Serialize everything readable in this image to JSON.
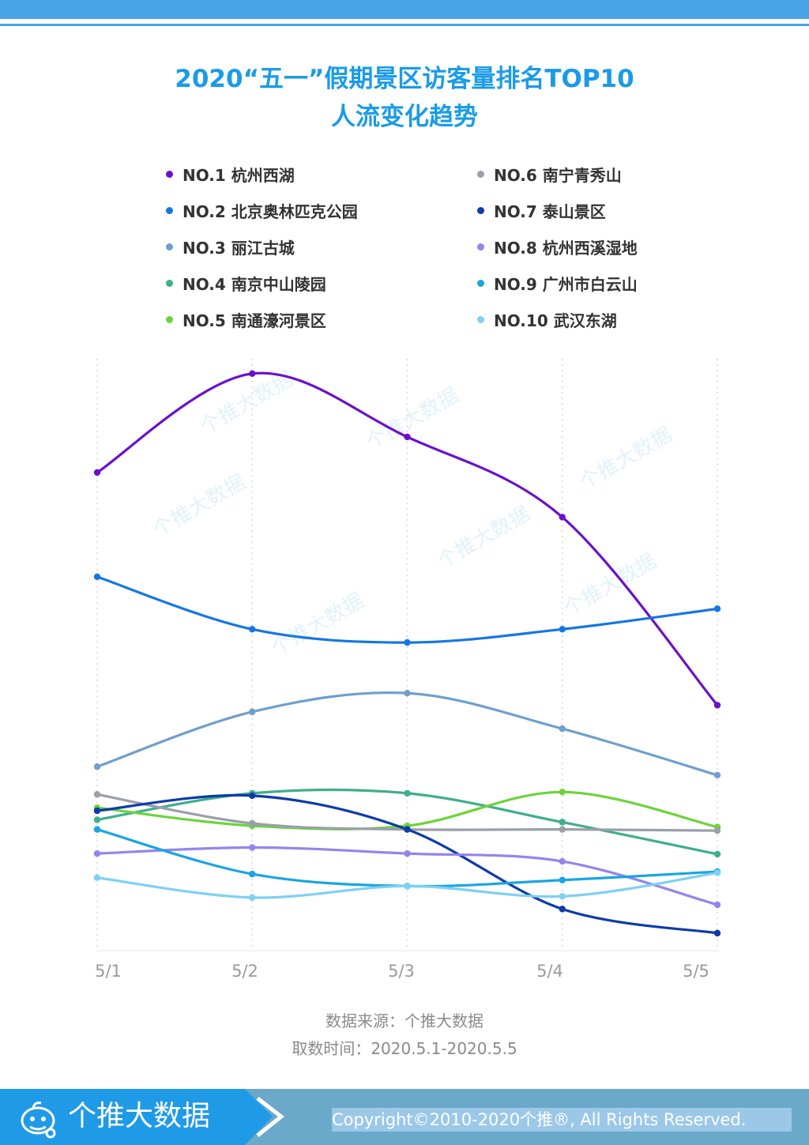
{
  "title": {
    "line1": "2020“五一”假期景区访客量排名TOP10",
    "line2": "人流变化趋势"
  },
  "watermark": "个推大数据",
  "source": {
    "line1": "数据来源：个推大数据",
    "line2": "取数时间：2020.5.1-2020.5.5"
  },
  "footer": {
    "brand": "个推大数据",
    "copyright": "Copyright©2010-2020个推®, All Rights Reserved."
  },
  "chart_data": {
    "type": "line",
    "title": "2020“五一”假期景区访客量排名TOP10 人流变化趋势",
    "x": [
      "5/1",
      "5/2",
      "5/3",
      "5/4",
      "5/5"
    ],
    "xlabel": "",
    "ylabel": "",
    "y_axis_labels_shown": false,
    "ylim": [
      0,
      100
    ],
    "grid": "vertical dotted",
    "legend_position": "top",
    "series": [
      {
        "name": "NO.1 杭州西湖",
        "color": "#6a11cb",
        "values": [
          79.3,
          95.7,
          85.2,
          71.9,
          40.7
        ]
      },
      {
        "name": "NO.2 北京奥林匹克公园",
        "color": "#1676e4",
        "values": [
          62.0,
          53.3,
          51.1,
          53.3,
          56.7
        ]
      },
      {
        "name": "NO.3 丽江古城",
        "color": "#6f9fcc",
        "values": [
          30.5,
          39.6,
          42.7,
          36.8,
          29.1
        ]
      },
      {
        "name": "NO.4 南京中山陵园",
        "color": "#3fae8c",
        "values": [
          21.7,
          26.1,
          26.1,
          21.3,
          16.0
        ]
      },
      {
        "name": "NO.5 南通濠河景区",
        "color": "#6bd43a",
        "values": [
          23.7,
          20.7,
          20.7,
          26.3,
          20.5
        ]
      },
      {
        "name": "NO.6 南宁青秀山",
        "color": "#9b9faa",
        "values": [
          25.9,
          21.1,
          20.1,
          20.1,
          19.9
        ]
      },
      {
        "name": "NO.7 泰山景区",
        "color": "#0d3ba8",
        "values": [
          23.2,
          25.7,
          20.1,
          6.9,
          2.9
        ]
      },
      {
        "name": "NO.8 杭州西溪湿地",
        "color": "#9485ee",
        "values": [
          16.1,
          17.1,
          16.1,
          14.8,
          7.6
        ]
      },
      {
        "name": "NO.9 广州市白云山",
        "color": "#1aa5e0",
        "values": [
          20.1,
          12.7,
          10.7,
          11.7,
          13.1
        ]
      },
      {
        "name": "NO.10 武汉东湖",
        "color": "#7fd0f3",
        "values": [
          12.1,
          8.8,
          10.7,
          9.0,
          12.9
        ]
      }
    ]
  }
}
